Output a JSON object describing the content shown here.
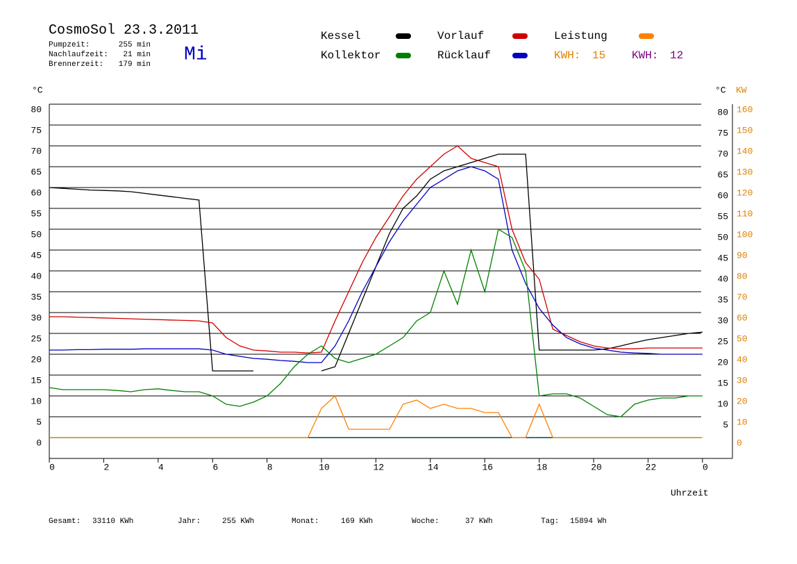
{
  "chart_data": {
    "type": "line",
    "title": "CosmoSol 23.3.2011",
    "info": [
      {
        "label": "Pumpzeit:",
        "value": "255 min"
      },
      {
        "label": "Nachlaufzeit:",
        "value": "21 min"
      },
      {
        "label": "Brennerzeit:",
        "value": "179 min"
      }
    ],
    "day": "Mi",
    "kwh": [
      {
        "label": "KWH:",
        "value": "15",
        "color": "#e08000"
      },
      {
        "label": "KWH:",
        "value": "12",
        "color": "#800080"
      }
    ],
    "y_label": "°C",
    "y_label_right": "°C",
    "y2_label": "KW",
    "x_label": "Uhrzeit",
    "footer": [
      {
        "label": "Gesamt:",
        "value": "33110 KWh"
      },
      {
        "label": "Jahr:",
        "value": "255 KWh"
      },
      {
        "label": "Monat:",
        "value": "169 KWh"
      },
      {
        "label": "Woche:",
        "value": "37 KWh"
      },
      {
        "label": "Tag:",
        "value": "15894 Wh"
      }
    ],
    "xlim": [
      0,
      25.1
    ],
    "ylim": [
      -5,
      80
    ],
    "y2lim": [
      -10,
      160
    ],
    "xticks": [
      0,
      2,
      4,
      6,
      8,
      10,
      12,
      14,
      16,
      18,
      20,
      22,
      {
        "value": 24,
        "label": "0"
      }
    ],
    "yticks": [
      0,
      5,
      10,
      15,
      20,
      25,
      30,
      35,
      40,
      45,
      50,
      55,
      60,
      65,
      70,
      75,
      80
    ],
    "right_yticks": [
      5,
      10,
      15,
      20,
      25,
      30,
      35,
      40,
      45,
      50,
      55,
      60,
      65,
      70,
      75,
      80
    ],
    "y2ticks": [
      0,
      10,
      20,
      30,
      40,
      50,
      60,
      70,
      80,
      90,
      100,
      110,
      120,
      130,
      140,
      150,
      160
    ],
    "grid": true,
    "x": [
      0,
      0.5,
      1,
      1.5,
      2,
      2.5,
      3,
      3.5,
      4,
      4.5,
      5,
      5.5,
      6,
      6.5,
      7,
      7.5,
      8,
      8.5,
      9,
      9.5,
      10,
      10.5,
      11,
      11.5,
      12,
      12.5,
      13,
      13.5,
      14,
      14.5,
      15,
      15.5,
      16,
      16.5,
      17,
      17.5,
      18,
      18.5,
      19,
      19.5,
      20,
      20.5,
      21,
      21.5,
      22,
      22.5,
      23,
      23.5,
      24
    ],
    "series": [
      {
        "name": "Kessel",
        "color": "#000000",
        "values": [
          60,
          59.8,
          59.6,
          59.4,
          59.3,
          59.2,
          59,
          58.6,
          58.2,
          57.8,
          57.4,
          57,
          16,
          16,
          16,
          16,
          null,
          null,
          null,
          null,
          16,
          17,
          25,
          33,
          41,
          49,
          55,
          58,
          62,
          64,
          65,
          66,
          67,
          68,
          68,
          68,
          21,
          21,
          21,
          21,
          21,
          21.3,
          22,
          22.8,
          23.5,
          24,
          24.5,
          25,
          25.3
        ]
      },
      {
        "name": "Vorlauf",
        "color": "#d00000",
        "values": [
          29,
          29,
          28.9,
          28.8,
          28.7,
          28.6,
          28.5,
          28.4,
          28.3,
          28.2,
          28.1,
          28,
          27.5,
          24,
          22,
          21,
          20.8,
          20.5,
          20.5,
          20.3,
          20.5,
          28,
          35,
          42,
          48,
          53,
          58,
          62,
          65,
          68,
          70,
          67,
          66,
          65,
          50,
          42,
          38,
          26,
          24.5,
          23,
          22,
          21.5,
          21.3,
          21.3,
          21.5,
          21.5,
          21.5,
          21.5,
          21.5
        ]
      },
      {
        "name": "Rücklauf",
        "color": "#0000c0",
        "values": [
          21,
          21,
          21.1,
          21.1,
          21.2,
          21.2,
          21.2,
          21.3,
          21.3,
          21.3,
          21.3,
          21.3,
          21,
          20,
          19.5,
          19,
          18.8,
          18.5,
          18.3,
          18,
          18,
          22,
          28,
          35,
          41,
          47,
          52,
          56,
          60,
          62,
          64,
          65,
          64,
          62,
          45,
          37,
          31,
          27,
          24,
          22.5,
          21.5,
          21,
          20.5,
          20.3,
          20.2,
          20,
          20,
          20,
          20
        ]
      },
      {
        "name": "Kollektor",
        "color": "#008000",
        "values": [
          12,
          11.5,
          11.5,
          11.5,
          11.5,
          11.3,
          11,
          11.5,
          11.7,
          11.3,
          11,
          11,
          10,
          8,
          7.5,
          8.5,
          10,
          13,
          17,
          20,
          22,
          19,
          18,
          19,
          20,
          22,
          24,
          28,
          30,
          40,
          32,
          45,
          35,
          50,
          48,
          40,
          10,
          10.5,
          10.5,
          9.5,
          7.5,
          5.5,
          5,
          8,
          9,
          9.5,
          9.5,
          10,
          10
        ]
      },
      {
        "name": "Leistung",
        "color": "#ff8000",
        "axis": "y2",
        "values": [
          0,
          0,
          0,
          0,
          0,
          0,
          0,
          0,
          0,
          0,
          0,
          0,
          0,
          0,
          0,
          0,
          0,
          0,
          0,
          0,
          14,
          20,
          4,
          4,
          4,
          4,
          16,
          18,
          14,
          16,
          14,
          14,
          12,
          12,
          0,
          0,
          16,
          0,
          0,
          0,
          0,
          0,
          0,
          0,
          0,
          0,
          0,
          0,
          0
        ]
      }
    ]
  }
}
